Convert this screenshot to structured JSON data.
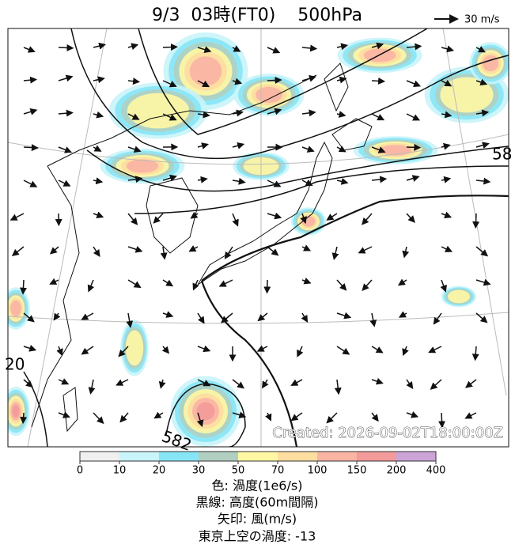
{
  "header": {
    "title": "9/3  03時(FT0)    500hPa",
    "scale_label": "30 m/s"
  },
  "map": {
    "contour_labels": [
      "58",
      "20",
      "582"
    ],
    "created": "Created: 2026-09-02T18:00:00Z"
  },
  "colorbar": {
    "ticks": [
      0,
      10,
      20,
      30,
      50,
      70,
      100,
      150,
      200,
      400
    ],
    "colors": [
      "#f0f0f0",
      "#c8f4fa",
      "#86e6f6",
      "#b0cfc0",
      "#fff7a4",
      "#fddda0",
      "#f9b4a4",
      "#f39a9a",
      "#cba4d8"
    ]
  },
  "caption": [
    "色: 渦度(1e6/s)",
    "黒線: 高度(60m間隔)",
    "矢印: 風(m/s)",
    "東京上空の渦度: -13"
  ]
}
